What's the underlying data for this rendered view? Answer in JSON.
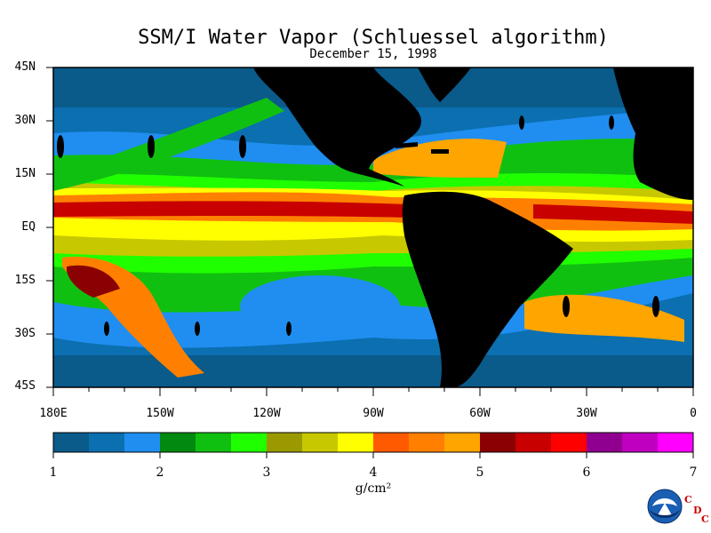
{
  "title": "SSM/I Water Vapor (Schluessel algorithm)",
  "subtitle": "December 15, 1998",
  "lat_labels": [
    "45N",
    "30N",
    "15N",
    "EQ",
    "15S",
    "30S",
    "45S"
  ],
  "lon_labels": [
    "180E",
    "150W",
    "120W",
    "90W",
    "60W",
    "30W",
    "0"
  ],
  "colorbar": {
    "ticks": [
      "1",
      "2",
      "3",
      "4",
      "5",
      "6",
      "7"
    ],
    "units": "g/cm²",
    "colors": [
      "#0a5a8a",
      "#0b6fb0",
      "#1f8ef0",
      "#008a10",
      "#10c010",
      "#20ff00",
      "#9a9a00",
      "#c8c800",
      "#ffff00",
      "#ff5a00",
      "#ff8000",
      "#ffa500",
      "#8b0000",
      "#c80000",
      "#ff0000",
      "#900090",
      "#c000c0",
      "#ff00ff"
    ]
  },
  "land_color": "#000000",
  "logo": {
    "name": "NOAA",
    "letters": [
      "C",
      "D",
      "C"
    ]
  }
}
